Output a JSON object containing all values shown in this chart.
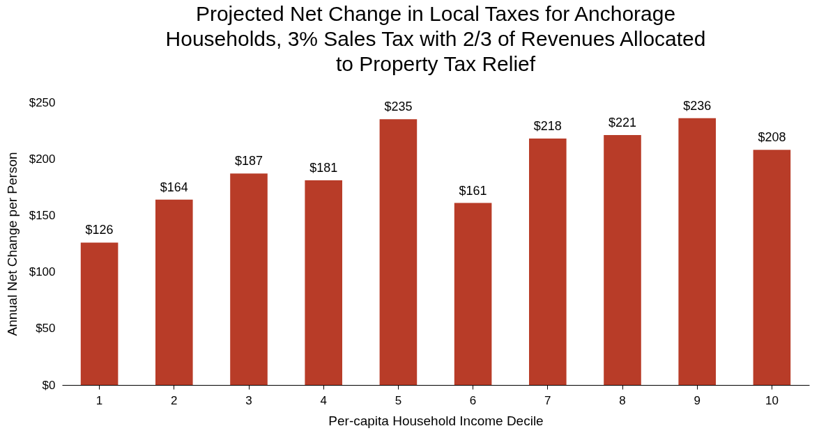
{
  "chart_data": {
    "type": "bar",
    "title": "Projected Net Change in Local Taxes for Anchorage\nHouseholds, 3% Sales Tax with 2/3 of Revenues Allocated\nto Property Tax Relief",
    "xlabel": "Per-capita Household Income Decile",
    "ylabel": "Annual Net Change per Person",
    "categories": [
      "1",
      "2",
      "3",
      "4",
      "5",
      "6",
      "7",
      "8",
      "9",
      "10"
    ],
    "values": [
      126,
      164,
      187,
      181,
      235,
      161,
      218,
      221,
      236,
      208
    ],
    "value_labels": [
      "$126",
      "$164",
      "$187",
      "$181",
      "$235",
      "$161",
      "$218",
      "$221",
      "$236",
      "$208"
    ],
    "color": "#b83c28",
    "ylim": [
      0,
      250
    ],
    "yticks": [
      {
        "value": 0,
        "label": "$0"
      },
      {
        "value": 50,
        "label": "$50"
      },
      {
        "value": 100,
        "label": "$100"
      },
      {
        "value": 150,
        "label": "$150"
      },
      {
        "value": 200,
        "label": "$200"
      },
      {
        "value": 250,
        "label": "$250"
      }
    ],
    "grid": false
  }
}
